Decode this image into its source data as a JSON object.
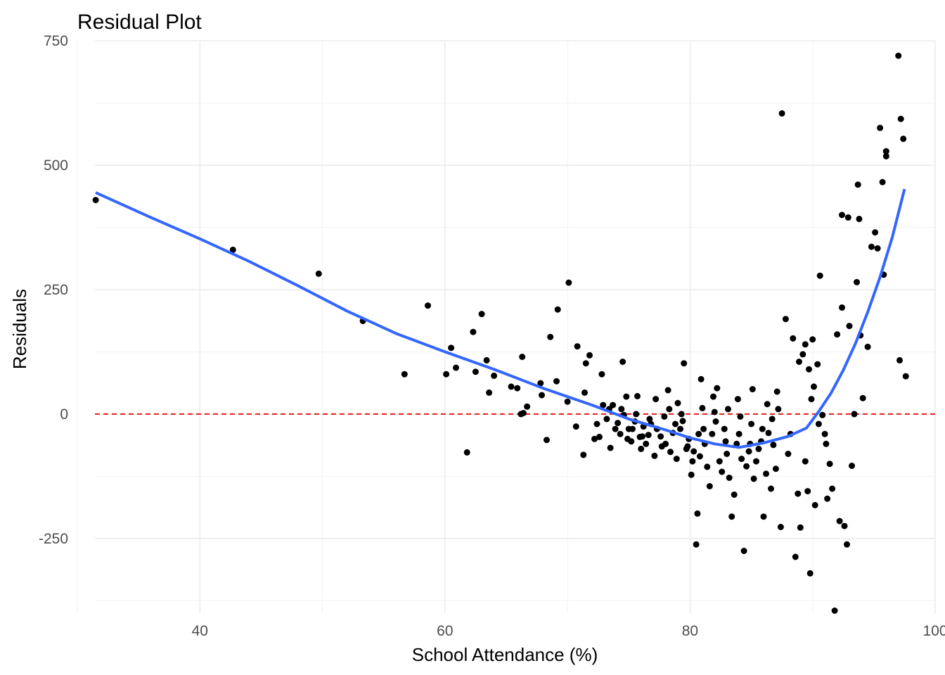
{
  "chart_data": {
    "type": "scatter",
    "title": "Residual Plot",
    "xlabel": "School Attendance (%)",
    "ylabel": "Residuals",
    "xlim": [
      30,
      100
    ],
    "ylim": [
      -400,
      750
    ],
    "x_ticks": [
      40,
      60,
      80,
      100
    ],
    "x_tick_labels": [
      "40",
      "60",
      "80",
      "100"
    ],
    "y_ticks": [
      -250,
      0,
      250,
      500,
      750
    ],
    "y_tick_labels": [
      "-250",
      "0",
      "250",
      "500",
      "750"
    ],
    "grid": true,
    "reference_line": {
      "y": 0,
      "color": "#e41a1c",
      "style": "dashed"
    },
    "smooth_color": "#3366ff",
    "point_color": "#000000",
    "series": [
      {
        "type": "points",
        "points": [
          [
            31.5,
            430
          ],
          [
            42.7,
            330
          ],
          [
            49.7,
            282
          ],
          [
            53.3,
            187
          ],
          [
            56.7,
            80
          ],
          [
            58.6,
            218
          ],
          [
            60.1,
            80
          ],
          [
            60.5,
            133
          ],
          [
            60.9,
            93
          ],
          [
            61.8,
            -77
          ],
          [
            62.3,
            165
          ],
          [
            62.5,
            85
          ],
          [
            63,
            201
          ],
          [
            63.4,
            108
          ],
          [
            63.6,
            43
          ],
          [
            64,
            77
          ],
          [
            65.4,
            55
          ],
          [
            65.9,
            52
          ],
          [
            66.2,
            0
          ],
          [
            66.3,
            115
          ],
          [
            66.4,
            2
          ],
          [
            66.7,
            15
          ],
          [
            67.8,
            62
          ],
          [
            67.9,
            38
          ],
          [
            68.3,
            -52
          ],
          [
            68.6,
            155
          ],
          [
            69.1,
            66
          ],
          [
            69.2,
            210
          ],
          [
            70,
            25
          ],
          [
            70.1,
            264
          ],
          [
            70.7,
            -25
          ],
          [
            70.8,
            136
          ],
          [
            71.3,
            -82
          ],
          [
            71.4,
            43
          ],
          [
            71.5,
            102
          ],
          [
            71.8,
            118
          ],
          [
            72.2,
            -50
          ],
          [
            72.6,
            -46
          ],
          [
            72.9,
            18
          ],
          [
            72.8,
            80
          ],
          [
            73.4,
            10
          ],
          [
            73.5,
            -68
          ],
          [
            73.7,
            18
          ],
          [
            74.1,
            -18
          ],
          [
            74.3,
            -40
          ],
          [
            74.5,
            105
          ],
          [
            74.6,
            -2
          ],
          [
            74.8,
            35
          ],
          [
            75,
            -30
          ],
          [
            75.2,
            -55
          ],
          [
            75.5,
            -15
          ],
          [
            75.6,
            0
          ],
          [
            75.7,
            36
          ],
          [
            75.9,
            -46
          ],
          [
            76,
            -70
          ],
          [
            76.2,
            -25
          ],
          [
            76.4,
            -60
          ],
          [
            76.6,
            -42
          ],
          [
            76.8,
            -20
          ],
          [
            77.1,
            -84
          ],
          [
            77.3,
            -30
          ],
          [
            77.6,
            -45
          ],
          [
            77.9,
            -5
          ],
          [
            78,
            -60
          ],
          [
            78.2,
            48
          ],
          [
            78.4,
            -76
          ],
          [
            78.6,
            -38
          ],
          [
            78.9,
            -90
          ],
          [
            79,
            22
          ],
          [
            79.2,
            -30
          ],
          [
            79.4,
            -14
          ],
          [
            79.5,
            102
          ],
          [
            79.7,
            -70
          ],
          [
            79.9,
            -50
          ],
          [
            80.1,
            -122
          ],
          [
            80.3,
            -75
          ],
          [
            80.5,
            -262
          ],
          [
            80.6,
            -200
          ],
          [
            80.8,
            -85
          ],
          [
            81,
            12
          ],
          [
            81.2,
            -60
          ],
          [
            81.4,
            -106
          ],
          [
            81.6,
            -145
          ],
          [
            81.8,
            -40
          ],
          [
            82,
            4
          ],
          [
            82.2,
            52
          ],
          [
            82.4,
            -95
          ],
          [
            82.6,
            -116
          ],
          [
            82.8,
            -30
          ],
          [
            83,
            -80
          ],
          [
            83.2,
            -128
          ],
          [
            83.4,
            -206
          ],
          [
            83.6,
            -162
          ],
          [
            83.8,
            -60
          ],
          [
            84,
            -40
          ],
          [
            84.2,
            -90
          ],
          [
            84.4,
            -275
          ],
          [
            84.6,
            -105
          ],
          [
            84.8,
            -75
          ],
          [
            85,
            -20
          ],
          [
            85.2,
            -130
          ],
          [
            85.4,
            -95
          ],
          [
            85.6,
            -70
          ],
          [
            85.8,
            -55
          ],
          [
            86,
            -206
          ],
          [
            86.2,
            -120
          ],
          [
            86.4,
            -38
          ],
          [
            86.6,
            -150
          ],
          [
            86.8,
            -62
          ],
          [
            87,
            -110
          ],
          [
            87.2,
            10
          ],
          [
            87.4,
            -227
          ],
          [
            87.5,
            604
          ],
          [
            87.8,
            191
          ],
          [
            88,
            -80
          ],
          [
            88.2,
            -40
          ],
          [
            88.4,
            152
          ],
          [
            88.6,
            -287
          ],
          [
            88.8,
            -160
          ],
          [
            89,
            -228
          ],
          [
            89.2,
            120
          ],
          [
            89.4,
            -95
          ],
          [
            89.6,
            -155
          ],
          [
            89.8,
            -320
          ],
          [
            90,
            150
          ],
          [
            90.2,
            -183
          ],
          [
            90.4,
            100
          ],
          [
            90.6,
            278
          ],
          [
            90.8,
            -2
          ],
          [
            91,
            -40
          ],
          [
            91.2,
            -170
          ],
          [
            91.4,
            -100
          ],
          [
            91.6,
            -150
          ],
          [
            91.8,
            -395
          ],
          [
            92,
            160
          ],
          [
            92.2,
            -215
          ],
          [
            92.4,
            214
          ],
          [
            92.6,
            -225
          ],
          [
            92.8,
            -262
          ],
          [
            93,
            177
          ],
          [
            93.2,
            -104
          ],
          [
            93.4,
            0
          ],
          [
            93.6,
            265
          ],
          [
            93.7,
            461
          ],
          [
            93.9,
            158
          ],
          [
            94.1,
            32
          ],
          [
            94.5,
            135
          ],
          [
            94.8,
            336
          ],
          [
            95.1,
            365
          ],
          [
            95.3,
            333
          ],
          [
            95.5,
            575
          ],
          [
            95.7,
            466
          ],
          [
            95.8,
            280
          ],
          [
            96,
            528
          ],
          [
            96,
            518
          ],
          [
            97,
            720
          ],
          [
            97.1,
            108
          ],
          [
            97.2,
            593
          ],
          [
            97.4,
            553
          ],
          [
            97.6,
            76
          ],
          [
            92.4,
            400
          ],
          [
            92.9,
            395
          ],
          [
            93.8,
            392
          ],
          [
            88.9,
            105
          ],
          [
            89.4,
            140
          ],
          [
            89.7,
            90
          ],
          [
            90.1,
            55
          ],
          [
            89.9,
            30
          ],
          [
            90.5,
            -20
          ],
          [
            91.1,
            -60
          ],
          [
            86.7,
            -10
          ],
          [
            87.1,
            45
          ],
          [
            86.3,
            20
          ],
          [
            85.9,
            -30
          ],
          [
            85.1,
            50
          ],
          [
            84.9,
            -60
          ],
          [
            84.1,
            -5
          ],
          [
            83.9,
            30
          ],
          [
            83.1,
            10
          ],
          [
            82.9,
            -55
          ],
          [
            82.1,
            -15
          ],
          [
            81.9,
            35
          ],
          [
            81.1,
            -30
          ],
          [
            80.9,
            70
          ],
          [
            80.7,
            -40
          ],
          [
            80.2,
            -95
          ],
          [
            79.8,
            -65
          ],
          [
            79.3,
            0
          ],
          [
            78.8,
            -20
          ],
          [
            78.3,
            10
          ],
          [
            77.7,
            -65
          ],
          [
            77.2,
            30
          ],
          [
            76.7,
            -10
          ],
          [
            76.1,
            -45
          ],
          [
            75.3,
            -30
          ],
          [
            74.9,
            -50
          ],
          [
            74.4,
            10
          ],
          [
            73.9,
            -30
          ],
          [
            73.2,
            -10
          ],
          [
            72.4,
            -20
          ]
        ]
      },
      {
        "type": "smooth",
        "points": [
          [
            31.5,
            445
          ],
          [
            36,
            395
          ],
          [
            40,
            352
          ],
          [
            44,
            307
          ],
          [
            48,
            258
          ],
          [
            52,
            207
          ],
          [
            56,
            162
          ],
          [
            60,
            125
          ],
          [
            64,
            90
          ],
          [
            68,
            52
          ],
          [
            72,
            18
          ],
          [
            75,
            -10
          ],
          [
            78,
            -32
          ],
          [
            80,
            -48
          ],
          [
            82,
            -60
          ],
          [
            84,
            -67
          ],
          [
            86,
            -58
          ],
          [
            88,
            -45
          ],
          [
            89.5,
            -28
          ],
          [
            90.5,
            5
          ],
          [
            91.5,
            42
          ],
          [
            92.5,
            88
          ],
          [
            93.5,
            142
          ],
          [
            94.5,
            205
          ],
          [
            95.5,
            275
          ],
          [
            96.5,
            355
          ],
          [
            97.5,
            452
          ]
        ]
      }
    ]
  }
}
